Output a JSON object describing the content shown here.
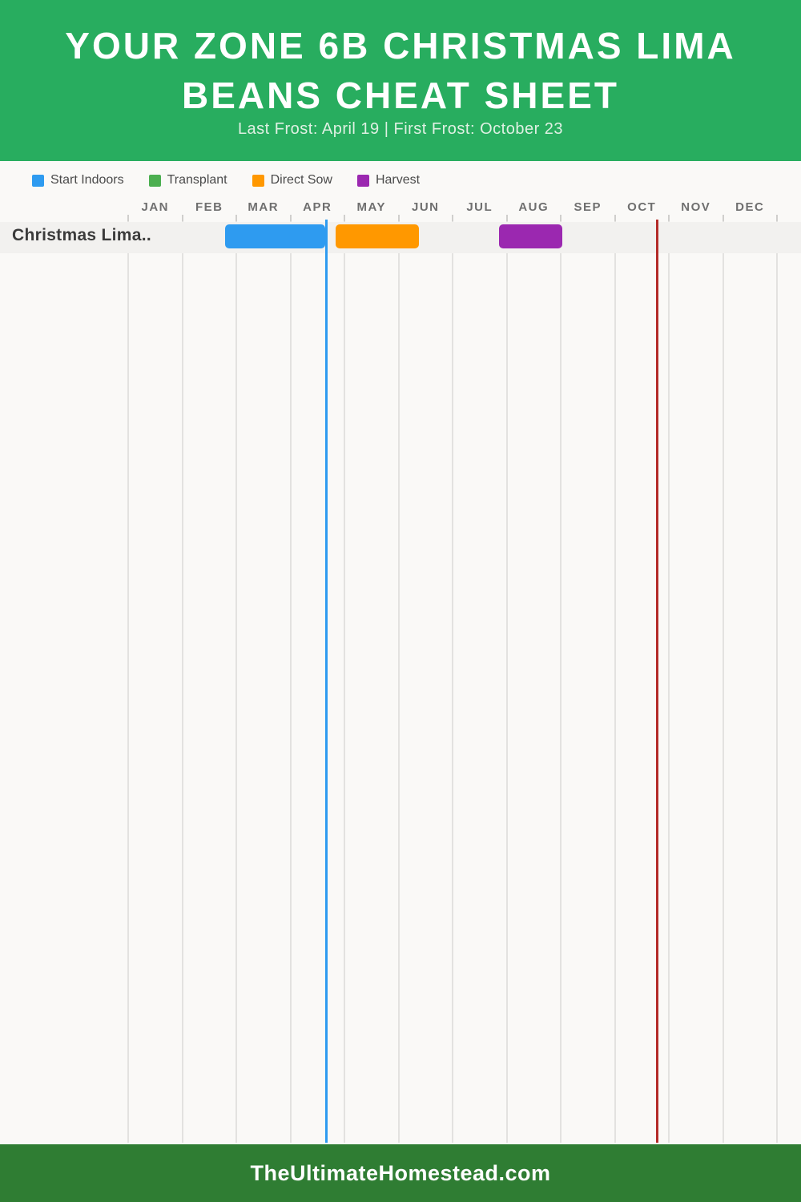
{
  "header": {
    "title_line1": "YOUR ZONE 6B CHRISTMAS LIMA",
    "title_line2": "BEANS CHEAT SHEET",
    "subtitle": "Last Frost: April 19 | First Frost: October 23",
    "background_color": "#28AD5F"
  },
  "legend": {
    "items": [
      {
        "label": "Start Indoors",
        "color": "#2E9BF0"
      },
      {
        "label": "Transplant",
        "color": "#4CAF50"
      },
      {
        "label": "Direct Sow",
        "color": "#FF9800"
      },
      {
        "label": "Harvest",
        "color": "#9B28B0"
      }
    ]
  },
  "chart_data": {
    "type": "gantt",
    "title": "Zone 6b Christmas Lima Beans planting calendar",
    "categories": [
      "Christmas Lima.."
    ],
    "x_axis": {
      "labels": [
        "JAN",
        "FEB",
        "MAR",
        "APR",
        "MAY",
        "JUN",
        "JUL",
        "AUG",
        "SEP",
        "OCT",
        "NOV",
        "DEC"
      ],
      "range_months": [
        0,
        12
      ],
      "grid": true
    },
    "series": [
      {
        "name": "Start Indoors",
        "category": "Christmas Lima..",
        "color": "#2E9BF0",
        "start_month": 1.79,
        "end_month": 3.64,
        "approx_dates": "Feb 22 - Apr 19"
      },
      {
        "name": "Direct Sow",
        "category": "Christmas Lima..",
        "color": "#FF9800",
        "start_month": 3.84,
        "end_month": 5.38,
        "approx_dates": "Apr 26 - Jun 11"
      },
      {
        "name": "Harvest",
        "category": "Christmas Lima..",
        "color": "#9B28B0",
        "start_month": 6.86,
        "end_month": 8.03,
        "approx_dates": "Jul 26 - Sep 1"
      }
    ],
    "markers": [
      {
        "name": "Last Frost",
        "label_date": "April 19",
        "month": 3.66,
        "color": "#2E9BF0"
      },
      {
        "name": "First Frost",
        "label_date": "October 23",
        "month": 9.78,
        "color": "#B42B28"
      }
    ],
    "row_band_color": "#F2F1EF",
    "background_color": "#FAF9F7"
  },
  "footer": {
    "site": "TheUltimateHomestead.com",
    "background_color": "#2F7D33"
  }
}
